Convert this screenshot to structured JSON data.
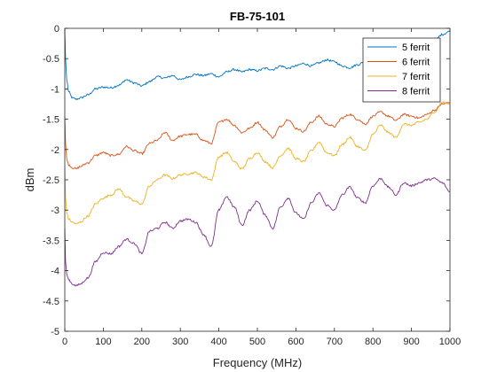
{
  "chart_data": {
    "type": "line",
    "title": "FB-75-101",
    "xlabel": "Frequency (MHz)",
    "ylabel": "dBm",
    "xlim": [
      0,
      1000
    ],
    "ylim": [
      -5,
      0
    ],
    "xticks": [
      0,
      100,
      200,
      300,
      400,
      500,
      600,
      700,
      800,
      900,
      1000
    ],
    "yticks": [
      -5,
      -4.5,
      -4,
      -3.5,
      -3,
      -2.5,
      -2,
      -1.5,
      -1,
      -0.5,
      0
    ],
    "xtick_labels": [
      "0",
      "100",
      "200",
      "300",
      "400",
      "500",
      "600",
      "700",
      "800",
      "900",
      "1000"
    ],
    "ytick_labels": [
      "-5",
      "-4.5",
      "-4",
      "-3.5",
      "-3",
      "-2.5",
      "-2",
      "-1.5",
      "-1",
      "-0.5",
      "0"
    ],
    "grid": false,
    "legend_position": "top-right",
    "series": [
      {
        "name": "5 ferrit",
        "color": "#0072BD",
        "x": [
          0,
          2,
          5,
          10,
          20,
          30,
          40,
          60,
          80,
          100,
          120,
          140,
          160,
          180,
          200,
          220,
          240,
          260,
          280,
          300,
          320,
          340,
          360,
          380,
          400,
          420,
          440,
          460,
          480,
          500,
          520,
          540,
          560,
          580,
          600,
          620,
          640,
          660,
          680,
          700,
          720,
          740,
          760,
          780,
          800,
          820,
          840,
          860,
          880,
          900,
          920,
          940,
          960,
          980,
          1000
        ],
        "y": [
          -0.02,
          -0.5,
          -0.85,
          -1.05,
          -1.15,
          -1.17,
          -1.15,
          -1.1,
          -1.0,
          -0.97,
          -0.98,
          -0.94,
          -0.85,
          -0.9,
          -0.95,
          -0.88,
          -0.8,
          -0.82,
          -0.78,
          -0.85,
          -0.8,
          -0.76,
          -0.78,
          -0.75,
          -0.8,
          -0.72,
          -0.68,
          -0.72,
          -0.68,
          -0.7,
          -0.66,
          -0.68,
          -0.62,
          -0.66,
          -0.62,
          -0.58,
          -0.62,
          -0.57,
          -0.52,
          -0.55,
          -0.62,
          -0.65,
          -0.6,
          -0.55,
          -0.58,
          -0.5,
          -0.48,
          -0.42,
          -0.45,
          -0.35,
          -0.3,
          -0.28,
          -0.2,
          -0.1,
          -0.05
        ]
      },
      {
        "name": "6 ferrit",
        "color": "#D95319",
        "x": [
          0,
          2,
          5,
          10,
          20,
          30,
          40,
          60,
          80,
          100,
          120,
          140,
          160,
          180,
          200,
          220,
          240,
          260,
          280,
          300,
          320,
          340,
          360,
          380,
          400,
          420,
          440,
          460,
          480,
          500,
          520,
          540,
          560,
          580,
          600,
          620,
          640,
          660,
          680,
          700,
          720,
          740,
          760,
          780,
          800,
          820,
          840,
          860,
          880,
          900,
          920,
          940,
          960,
          980,
          1000
        ],
        "y": [
          -1.45,
          -1.9,
          -2.15,
          -2.25,
          -2.3,
          -2.32,
          -2.28,
          -2.22,
          -2.1,
          -2.05,
          -2.1,
          -2.08,
          -1.95,
          -2.02,
          -2.07,
          -1.9,
          -1.85,
          -1.72,
          -1.85,
          -1.78,
          -1.75,
          -1.75,
          -1.85,
          -1.9,
          -1.55,
          -1.5,
          -1.6,
          -1.72,
          -1.65,
          -1.55,
          -1.68,
          -1.8,
          -1.62,
          -1.5,
          -1.65,
          -1.7,
          -1.55,
          -1.45,
          -1.58,
          -1.62,
          -1.48,
          -1.42,
          -1.5,
          -1.58,
          -1.45,
          -1.38,
          -1.45,
          -1.52,
          -1.42,
          -1.45,
          -1.48,
          -1.42,
          -1.35,
          -1.25,
          -1.22
        ]
      },
      {
        "name": "7 ferrit",
        "color": "#EDB120",
        "x": [
          0,
          2,
          5,
          10,
          20,
          30,
          40,
          60,
          80,
          100,
          120,
          140,
          160,
          180,
          200,
          220,
          240,
          260,
          280,
          300,
          320,
          340,
          360,
          380,
          400,
          420,
          440,
          460,
          480,
          500,
          520,
          540,
          560,
          580,
          600,
          620,
          640,
          660,
          680,
          700,
          720,
          740,
          760,
          780,
          800,
          820,
          840,
          860,
          880,
          900,
          920,
          940,
          960,
          980,
          1000
        ],
        "y": [
          -2.3,
          -2.8,
          -3.05,
          -3.15,
          -3.2,
          -3.23,
          -3.2,
          -3.1,
          -2.9,
          -2.8,
          -2.75,
          -2.65,
          -2.78,
          -2.85,
          -2.9,
          -2.6,
          -2.5,
          -2.42,
          -2.48,
          -2.42,
          -2.4,
          -2.38,
          -2.45,
          -2.5,
          -2.12,
          -2.05,
          -2.2,
          -2.32,
          -2.15,
          -2.05,
          -2.2,
          -2.3,
          -2.1,
          -1.98,
          -2.15,
          -2.2,
          -2.02,
          -1.88,
          -2.05,
          -2.1,
          -1.92,
          -1.8,
          -1.95,
          -2.02,
          -1.75,
          -1.6,
          -1.72,
          -1.8,
          -1.58,
          -1.6,
          -1.55,
          -1.5,
          -1.38,
          -1.22,
          -1.25
        ]
      },
      {
        "name": "8 ferrit",
        "color": "#7E2F8E",
        "x": [
          0,
          2,
          5,
          10,
          20,
          30,
          40,
          60,
          80,
          100,
          120,
          140,
          160,
          180,
          200,
          220,
          240,
          260,
          280,
          300,
          320,
          340,
          360,
          380,
          400,
          420,
          440,
          460,
          480,
          500,
          520,
          540,
          560,
          580,
          600,
          620,
          640,
          660,
          680,
          700,
          720,
          740,
          760,
          780,
          800,
          820,
          840,
          860,
          880,
          900,
          920,
          940,
          960,
          980,
          1000
        ],
        "y": [
          -3.3,
          -3.85,
          -4.05,
          -4.15,
          -4.22,
          -4.25,
          -4.22,
          -4.12,
          -3.85,
          -3.7,
          -3.72,
          -3.6,
          -3.48,
          -3.55,
          -3.72,
          -3.35,
          -3.3,
          -3.2,
          -3.3,
          -3.18,
          -3.15,
          -3.2,
          -3.4,
          -3.6,
          -3.0,
          -2.78,
          -2.95,
          -3.25,
          -3.0,
          -2.85,
          -3.08,
          -3.3,
          -2.95,
          -2.8,
          -3.05,
          -3.15,
          -2.88,
          -2.72,
          -2.92,
          -3.0,
          -2.75,
          -2.62,
          -2.8,
          -2.88,
          -2.6,
          -2.48,
          -2.62,
          -2.75,
          -2.55,
          -2.6,
          -2.55,
          -2.5,
          -2.48,
          -2.55,
          -2.7
        ]
      }
    ]
  }
}
